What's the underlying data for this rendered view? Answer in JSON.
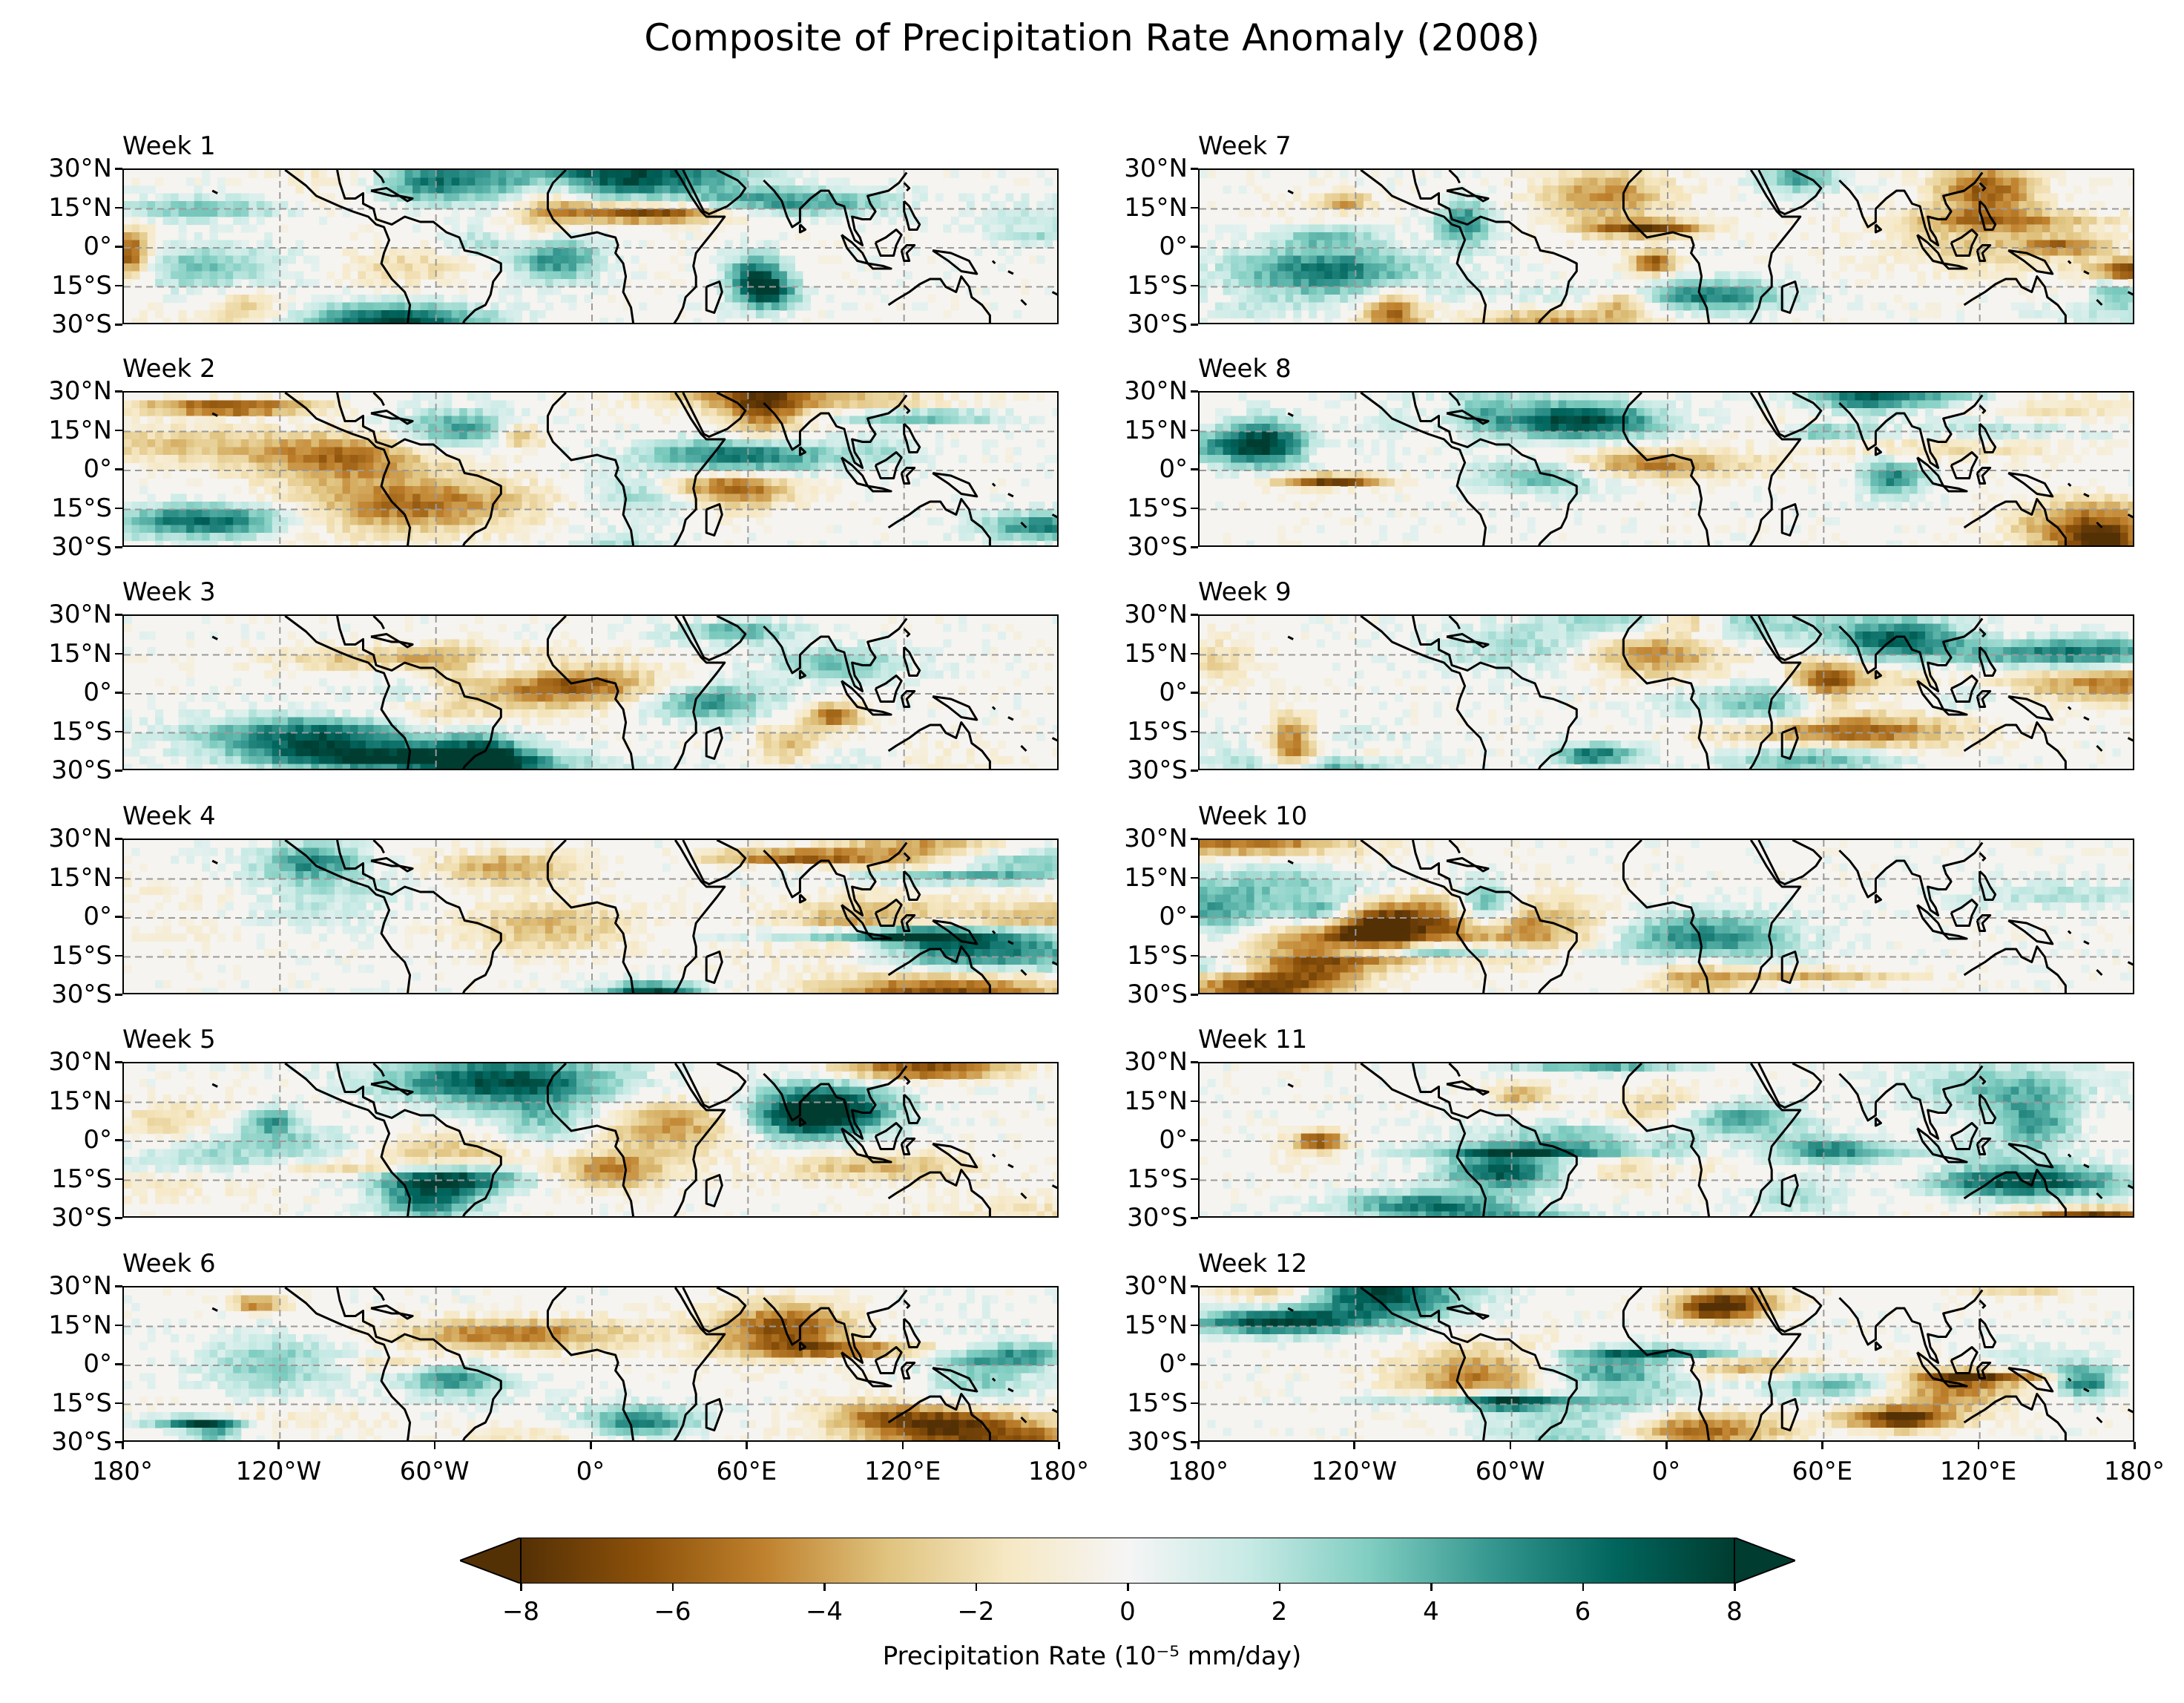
{
  "title": "Composite of Precipitation Rate Anomaly (2008)",
  "map_data": {
    "projection": "PlateCarree",
    "lon_range": [
      -180,
      180
    ],
    "lat_range": [
      -30,
      30
    ],
    "lon_ticks": [
      "180°",
      "120°W",
      "60°W",
      "0°",
      "60°E",
      "120°E",
      "180°"
    ],
    "lat_ticks": [
      "30°N",
      "15°N",
      "0°",
      "15°S",
      "30°S"
    ],
    "gridlines": true,
    "colormap": "BrBG",
    "panels": [
      {
        "label": "Week 1"
      },
      {
        "label": "Week 2"
      },
      {
        "label": "Week 3"
      },
      {
        "label": "Week 4"
      },
      {
        "label": "Week 5"
      },
      {
        "label": "Week 6"
      },
      {
        "label": "Week 7"
      },
      {
        "label": "Week 8"
      },
      {
        "label": "Week 9"
      },
      {
        "label": "Week 10"
      },
      {
        "label": "Week 11"
      },
      {
        "label": "Week 12"
      }
    ]
  },
  "colorbar": {
    "ticks": [
      "−8",
      "−6",
      "−4",
      "−2",
      "0",
      "2",
      "4",
      "6",
      "8"
    ],
    "range": [
      -8,
      8
    ],
    "extend": "both",
    "label": "Precipitation Rate (10⁻⁵ mm/day)",
    "colors": [
      "#543005",
      "#8c510a",
      "#bf812d",
      "#dfc27d",
      "#f6e8c3",
      "#f5f5f5",
      "#c7eae5",
      "#80cdc1",
      "#35978f",
      "#01665e",
      "#003c30"
    ]
  }
}
